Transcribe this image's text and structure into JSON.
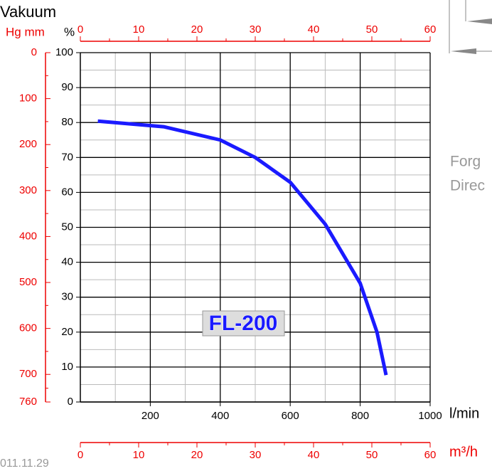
{
  "chart_data": {
    "type": "line",
    "title": "Vakuum",
    "ylabel": "%",
    "y2label": "Hg mm",
    "xlabel": "l/min",
    "x2label": "m³/h",
    "annotations": [
      "FL-200"
    ],
    "side_texts": [
      "Forg",
      "Direc"
    ],
    "date": "011.11.29",
    "x": [
      50,
      238,
      400,
      500,
      600,
      700,
      800,
      848,
      874
    ],
    "series": [
      {
        "color": "#1a1aff",
        "values": [
          80.4,
          78.8,
          75,
          70,
          62.9,
          50.9,
          34,
          20,
          7.7
        ]
      }
    ],
    "xlim": [
      0,
      1000
    ],
    "xticks": [
      200,
      400,
      600,
      800,
      1000
    ],
    "ylim": [
      0,
      100
    ],
    "yticks": [
      0,
      10,
      20,
      30,
      40,
      50,
      60,
      70,
      80,
      90,
      100
    ],
    "y2lim": [
      0,
      760
    ],
    "y2ticks": [
      0,
      100,
      200,
      300,
      400,
      500,
      600,
      700,
      760
    ],
    "x2lim": [
      0,
      60
    ],
    "x2ticks": [
      0,
      10,
      20,
      30,
      40,
      50,
      60
    ],
    "grid": true
  }
}
